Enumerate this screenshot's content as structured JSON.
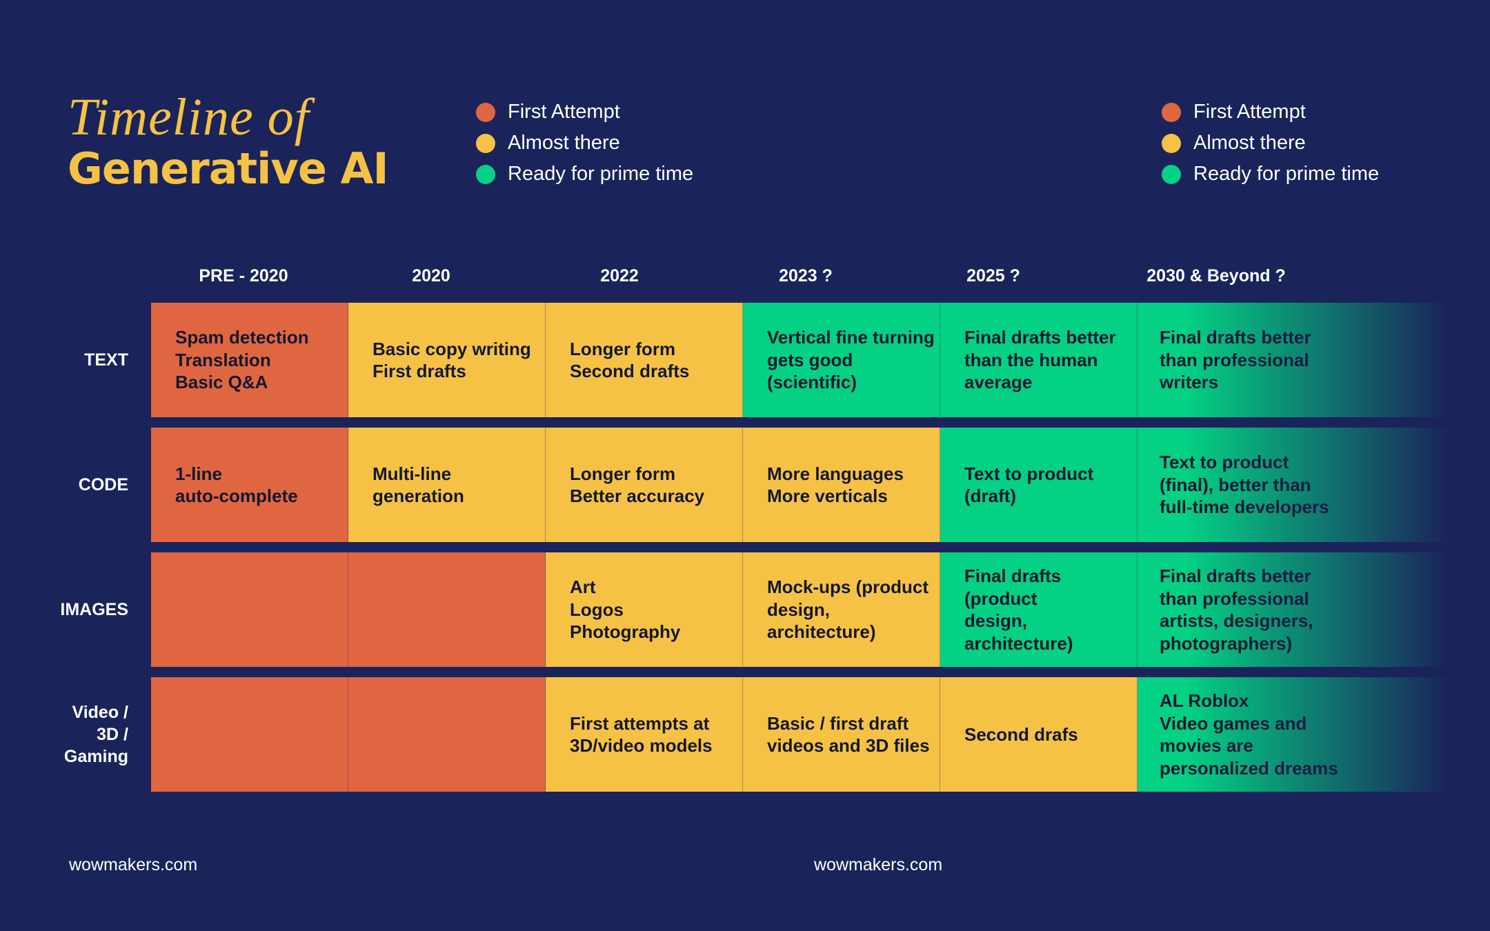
{
  "title": {
    "line1": "Timeline of",
    "line2": "Generative AI"
  },
  "legend": [
    {
      "label": "First Attempt",
      "color": "#e06642"
    },
    {
      "label": "Almost there",
      "color": "#f6c245"
    },
    {
      "label": "Ready for prime time",
      "color": "#04d184"
    }
  ],
  "years": [
    "PRE - 2020",
    "2020",
    "2022",
    "2023 ?",
    "2025 ?",
    "2030 & Beyond ?"
  ],
  "rows": [
    {
      "label": "TEXT",
      "cells": [
        {
          "text": "Spam detection\nTranslation\nBasic Q&A",
          "status": "first"
        },
        {
          "text": "Basic copy writing\nFirst drafts",
          "status": "almost"
        },
        {
          "text": "Longer form\nSecond drafts",
          "status": "almost"
        },
        {
          "text": "Vertical fine turning\ngets good\n(scientific)",
          "status": "ready"
        },
        {
          "text": "Final drafts better\nthan the human\naverage",
          "status": "ready"
        },
        {
          "text": "Final drafts better\nthan professional\nwriters",
          "status": "ready"
        }
      ]
    },
    {
      "label": "CODE",
      "cells": [
        {
          "text": "1-line\nauto-complete",
          "status": "first"
        },
        {
          "text": "Multi-line\ngeneration",
          "status": "almost"
        },
        {
          "text": "Longer form\nBetter accuracy",
          "status": "almost"
        },
        {
          "text": "More languages\nMore verticals",
          "status": "almost"
        },
        {
          "text": "Text to product\n(draft)",
          "status": "ready"
        },
        {
          "text": "Text to product\n(final), better than\nfull-time developers",
          "status": "ready"
        }
      ]
    },
    {
      "label": "IMAGES",
      "cells": [
        {
          "text": "",
          "status": "first"
        },
        {
          "text": "",
          "status": "first"
        },
        {
          "text": "Art\nLogos\nPhotography",
          "status": "almost"
        },
        {
          "text": "Mock-ups (product\ndesign, architecture)",
          "status": "almost"
        },
        {
          "text": "Final drafts (product\ndesign, architecture)",
          "status": "ready"
        },
        {
          "text": "Final drafts better\nthan professional\nartists, designers,\nphotographers)",
          "status": "ready"
        }
      ]
    },
    {
      "label": "Video /\n3D /\nGaming",
      "cells": [
        {
          "text": "",
          "status": "first"
        },
        {
          "text": "",
          "status": "first"
        },
        {
          "text": "First attempts at\n3D/video models",
          "status": "almost"
        },
        {
          "text": "Basic / first draft\nvideos and 3D files",
          "status": "almost"
        },
        {
          "text": "Second drafs",
          "status": "almost"
        },
        {
          "text": "AL Roblox\nVideo games and\nmovies are\npersonalized dreams",
          "status": "ready"
        }
      ]
    }
  ],
  "footer": "wowmakers.com"
}
